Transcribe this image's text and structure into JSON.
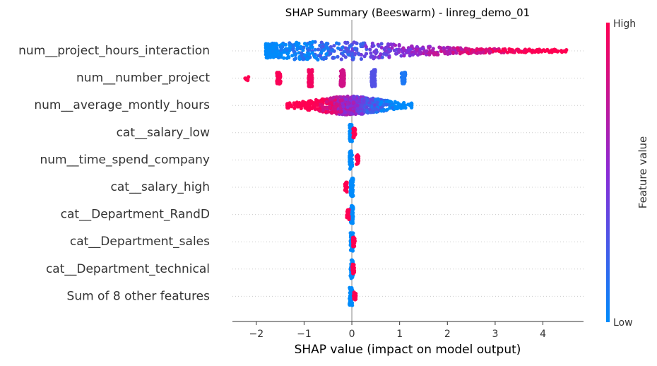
{
  "chart_data": {
    "type": "scatter",
    "subtype": "shap-beeswarm",
    "title": "SHAP Summary (Beeswarm) - linreg_demo_01",
    "xlabel": "SHAP value (impact on model output)",
    "xlim": [
      -2.5,
      4.85
    ],
    "xticks": [
      -2,
      -1,
      0,
      1,
      2,
      3,
      4
    ],
    "xtick_labels": [
      "−2",
      "−1",
      "0",
      "1",
      "2",
      "3",
      "4"
    ],
    "colorbar": {
      "label": "Feature value",
      "high_label": "High",
      "low_label": "Low",
      "low_color": "#008bfb",
      "high_color": "#ff0052"
    },
    "features": [
      {
        "name": "num__project_hours_interaction",
        "shap_range": [
          -1.8,
          4.5
        ],
        "mode": "continuous",
        "blue_center": -1.3,
        "red_center": 3.4
      },
      {
        "name": "num__number_project",
        "mode": "discrete",
        "clusters": [
          {
            "x": -2.2,
            "color_value": 1.0,
            "size": "small"
          },
          {
            "x": -1.53,
            "color_value": 0.98,
            "size": "medium"
          },
          {
            "x": -0.87,
            "color_value": 0.95,
            "size": "large"
          },
          {
            "x": -0.2,
            "color_value": 0.8,
            "size": "large"
          },
          {
            "x": 0.45,
            "color_value": 0.3,
            "size": "large"
          },
          {
            "x": 1.08,
            "color_value": 0.1,
            "size": "medium"
          }
        ]
      },
      {
        "name": "num__average_montly_hours",
        "shap_range": [
          -1.35,
          1.25
        ],
        "mode": "continuous",
        "blue_center": 0.8,
        "red_center": -0.7
      },
      {
        "name": "cat__salary_low",
        "mode": "binary",
        "blue_x": -0.02,
        "red_x": 0.05
      },
      {
        "name": "num__time_spend_company",
        "mode": "binary",
        "blue_x": -0.02,
        "red_x": 0.12
      },
      {
        "name": "cat__salary_high",
        "mode": "binary",
        "blue_x": 0.0,
        "red_x": -0.12
      },
      {
        "name": "cat__Department_RandD",
        "mode": "binary",
        "blue_x": 0.0,
        "red_x": -0.08
      },
      {
        "name": "cat__Department_sales",
        "mode": "binary",
        "blue_x": 0.0,
        "red_x": 0.04
      },
      {
        "name": "cat__Department_technical",
        "mode": "binary",
        "blue_x": 0.0,
        "red_x": 0.03
      },
      {
        "name": "Sum of 8 other features",
        "mode": "binary",
        "blue_x": -0.02,
        "red_x": 0.06
      }
    ],
    "zero_line": true,
    "grid": false
  }
}
